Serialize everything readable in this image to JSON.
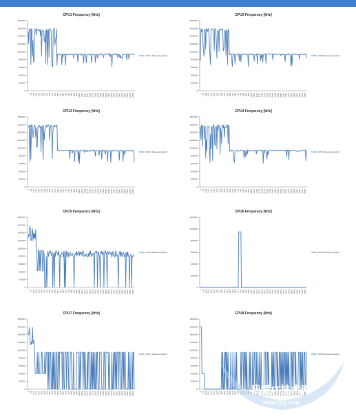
{
  "chart_data": [
    {
      "type": "line",
      "title": "CPU1 Frequency [kHz]",
      "series": [
        {
          "name": "CPU1 Frequency [kHz]",
          "values": []
        }
      ],
      "ylim": [
        0,
        1800000
      ],
      "yticks": [
        0,
        200000,
        400000,
        600000,
        800000,
        1000000,
        1200000,
        1400000,
        1600000,
        1800000
      ],
      "pattern": "high-then-flat",
      "high": 1600000,
      "flat": 950000,
      "color": "#4a7ebb"
    },
    {
      "type": "line",
      "title": "CPU2 Frequency [kHz]",
      "series": [
        {
          "name": "CPU2 Frequency [kHz]",
          "values": []
        }
      ],
      "ylim": [
        0,
        1800000
      ],
      "yticks": [
        0,
        200000,
        400000,
        600000,
        800000,
        1000000,
        1200000,
        1400000,
        1600000,
        1800000
      ],
      "pattern": "high-then-flat",
      "high": 1600000,
      "flat": 950000,
      "color": "#4a7ebb"
    },
    {
      "type": "line",
      "title": "CPU3 Frequency [kHz]",
      "series": [
        {
          "name": "CPU3 Frequency [kHz]",
          "values": []
        }
      ],
      "ylim": [
        0,
        1800000
      ],
      "yticks": [
        0,
        200000,
        400000,
        600000,
        800000,
        1000000,
        1200000,
        1400000,
        1600000,
        1800000
      ],
      "pattern": "high-then-flat",
      "high": 1600000,
      "flat": 950000,
      "color": "#4a7ebb"
    },
    {
      "type": "line",
      "title": "CPU4 Frequency [kHz]",
      "series": [
        {
          "name": "CPU4 Frequency [kHz]",
          "values": []
        }
      ],
      "ylim": [
        0,
        1800000
      ],
      "yticks": [
        0,
        200000,
        400000,
        600000,
        800000,
        1000000,
        1200000,
        1400000,
        1600000,
        1800000
      ],
      "pattern": "high-then-flat",
      "high": 1600000,
      "flat": 950000,
      "color": "#4a7ebb"
    },
    {
      "type": "line",
      "title": "CPU5 Frequency [kHz]",
      "series": [
        {
          "name": "CPU5 Frequency [kHz]",
          "values": []
        }
      ],
      "ylim": [
        0,
        1800000
      ],
      "yticks": [
        0,
        200000,
        400000,
        600000,
        800000,
        1000000,
        1200000,
        1400000,
        1600000,
        1800000
      ],
      "pattern": "burst-then-gaps",
      "high": 1600000,
      "flat": 950000,
      "color": "#4a7ebb"
    },
    {
      "type": "line",
      "title": "CPU6 Frequency [kHz]",
      "series": [
        {
          "name": "CPU6 Frequency [kHz]",
          "values": []
        }
      ],
      "ylim": [
        0,
        1200000
      ],
      "yticks": [
        0,
        200000,
        400000,
        600000,
        800000,
        1000000,
        1200000
      ],
      "pattern": "single-spike",
      "high": 950000,
      "flat": 0,
      "color": "#4a7ebb"
    },
    {
      "type": "line",
      "title": "CPU7 Frequency [kHz]",
      "series": [
        {
          "name": "CPU7 Frequency [kHz]",
          "values": []
        }
      ],
      "ylim": [
        0,
        1800000
      ],
      "yticks": [
        0,
        200000,
        400000,
        600000,
        800000,
        1000000,
        1200000,
        1400000,
        1600000,
        1800000
      ],
      "pattern": "burst-then-bars",
      "high": 1600000,
      "flat": 950000,
      "color": "#4a7ebb"
    },
    {
      "type": "line",
      "title": "CPU8 Frequency [kHz]",
      "series": [
        {
          "name": "CPU8 Frequency [kHz]",
          "values": []
        }
      ],
      "ylim": [
        0,
        1800000
      ],
      "yticks": [
        0,
        200000,
        400000,
        600000,
        800000,
        1000000,
        1200000,
        1400000,
        1600000,
        1800000
      ],
      "pattern": "spike-then-bars",
      "high": 1600000,
      "flat": 950000,
      "color": "#4a7ebb"
    }
  ],
  "watermark": {
    "main": "我爱IT技术网",
    "url": "www.52ij.com"
  },
  "colors": {
    "top_bar": "#3f7fd0",
    "line": "#4a7ebb",
    "axis": "#888888"
  }
}
